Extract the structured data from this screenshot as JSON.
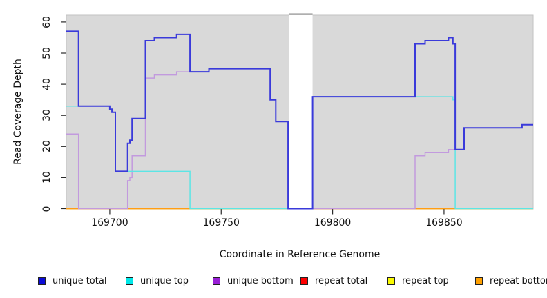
{
  "chart_data": {
    "type": "line",
    "style": "step-after",
    "title": "",
    "xlabel": "Coordinate in Reference Genome",
    "ylabel": "Read Coverage Depth",
    "xlim": [
      169680.5,
      169890
    ],
    "ylim": [
      0,
      62
    ],
    "xticks": [
      169700,
      169750,
      169800,
      169850
    ],
    "yticks": [
      0,
      10,
      20,
      30,
      40,
      50,
      60
    ],
    "grid": false,
    "plot_bg_color": "#d9d9d9",
    "plot_border_color": "#c2c2c2",
    "tick_color": "#2a2a2a",
    "gap_region": {
      "x_start": 169780.4,
      "x_end": 169791,
      "fill": "#ffffff",
      "top_bar_color": "#8d8d8d"
    },
    "legend_position": "bottom",
    "legend": [
      {
        "label": "unique total",
        "color": "#0b0bd6"
      },
      {
        "label": "unique top",
        "color": "#00e8e8"
      },
      {
        "label": "unique bottom",
        "color": "#991fd6"
      },
      {
        "label": "repeat total",
        "color": "#ff0000"
      },
      {
        "label": "repeat top",
        "color": "#fafa00"
      },
      {
        "label": "repeat bottom",
        "color": "#ffa000"
      }
    ],
    "series": [
      {
        "name": "repeat total",
        "color": "#e03a3a",
        "width": 1.4,
        "steps": [
          [
            169680.5,
            0
          ],
          [
            169890,
            0
          ]
        ]
      },
      {
        "name": "repeat top",
        "color": "#f0f000",
        "width": 1.4,
        "steps": [
          [
            169680.5,
            0
          ],
          [
            169890,
            0
          ]
        ]
      },
      {
        "name": "repeat bottom",
        "color": "#ff9d15",
        "width": 1.6,
        "steps": [
          [
            169680.5,
            0
          ],
          [
            169890,
            0
          ]
        ]
      },
      {
        "name": "unique bottom",
        "color": "#c29ade",
        "width": 1.5,
        "steps": [
          [
            169680.5,
            24
          ],
          [
            169686,
            0
          ],
          [
            169708,
            9
          ],
          [
            169709,
            10
          ],
          [
            169710,
            17
          ],
          [
            169716,
            42
          ],
          [
            169720,
            43
          ],
          [
            169730,
            44
          ],
          [
            169744.5,
            45
          ],
          [
            169772,
            35
          ],
          [
            169774.5,
            28
          ],
          [
            169780,
            0
          ],
          [
            169837,
            17
          ],
          [
            169841.5,
            18
          ],
          [
            169852,
            19
          ],
          [
            169859,
            26
          ],
          [
            169885,
            27
          ],
          [
            169890,
            27
          ]
        ]
      },
      {
        "name": "unique top",
        "color": "#5ce5e5",
        "width": 1.5,
        "steps": [
          [
            169680.5,
            33
          ],
          [
            169700,
            32
          ],
          [
            169701,
            31
          ],
          [
            169702.5,
            12
          ],
          [
            169736,
            0
          ],
          [
            169791,
            36
          ],
          [
            169854,
            35
          ],
          [
            169855,
            0
          ],
          [
            169890,
            0
          ]
        ]
      },
      {
        "name": "unique total",
        "color": "#3a3ada",
        "width": 2,
        "steps": [
          [
            169680.5,
            57
          ],
          [
            169686,
            33
          ],
          [
            169700,
            32
          ],
          [
            169701,
            31
          ],
          [
            169702.5,
            12
          ],
          [
            169708,
            21
          ],
          [
            169709,
            22
          ],
          [
            169710,
            29
          ],
          [
            169716,
            54
          ],
          [
            169720,
            55
          ],
          [
            169730,
            56
          ],
          [
            169736,
            44
          ],
          [
            169744.5,
            45
          ],
          [
            169772,
            35
          ],
          [
            169774.5,
            28
          ],
          [
            169780,
            0
          ],
          [
            169791,
            36
          ],
          [
            169837,
            53
          ],
          [
            169841.5,
            54
          ],
          [
            169852,
            55
          ],
          [
            169854,
            53
          ],
          [
            169855,
            19
          ],
          [
            169859,
            26
          ],
          [
            169885,
            27
          ],
          [
            169890,
            27
          ]
        ]
      }
    ]
  }
}
